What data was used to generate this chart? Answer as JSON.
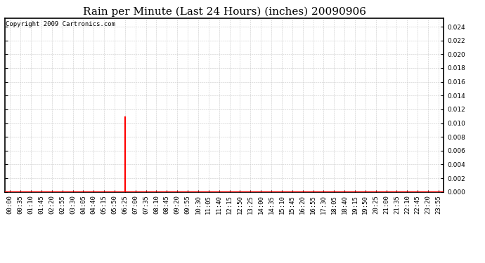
{
  "title": "Rain per Minute (Last 24 Hours) (inches) 20090906",
  "copyright_text": "Copyright 2009 Cartronics.com",
  "ylim": [
    0.0,
    0.0252
  ],
  "yticks": [
    0.0,
    0.002,
    0.004,
    0.006,
    0.008,
    0.01,
    0.012,
    0.014,
    0.016,
    0.018,
    0.02,
    0.022,
    0.024
  ],
  "x_labels": [
    "00:00",
    "00:35",
    "01:10",
    "01:45",
    "02:20",
    "02:55",
    "03:30",
    "04:05",
    "04:40",
    "05:15",
    "05:50",
    "06:25",
    "07:00",
    "07:35",
    "08:10",
    "08:45",
    "09:20",
    "09:55",
    "10:30",
    "11:05",
    "11:40",
    "12:15",
    "12:50",
    "13:25",
    "14:00",
    "14:35",
    "15:10",
    "15:45",
    "16:20",
    "16:55",
    "17:30",
    "18:05",
    "18:40",
    "19:15",
    "19:50",
    "20:25",
    "21:00",
    "21:35",
    "22:10",
    "22:45",
    "23:20",
    "23:55"
  ],
  "spike_index": 11,
  "spike_value": 0.011,
  "line_color": "#ff0000",
  "grid_color": "#c8c8c8",
  "background_color": "#ffffff",
  "title_fontsize": 11,
  "tick_fontsize": 6.5,
  "copyright_fontsize": 6.5,
  "baseline_linewidth": 2.5,
  "spike_linewidth": 1.5
}
